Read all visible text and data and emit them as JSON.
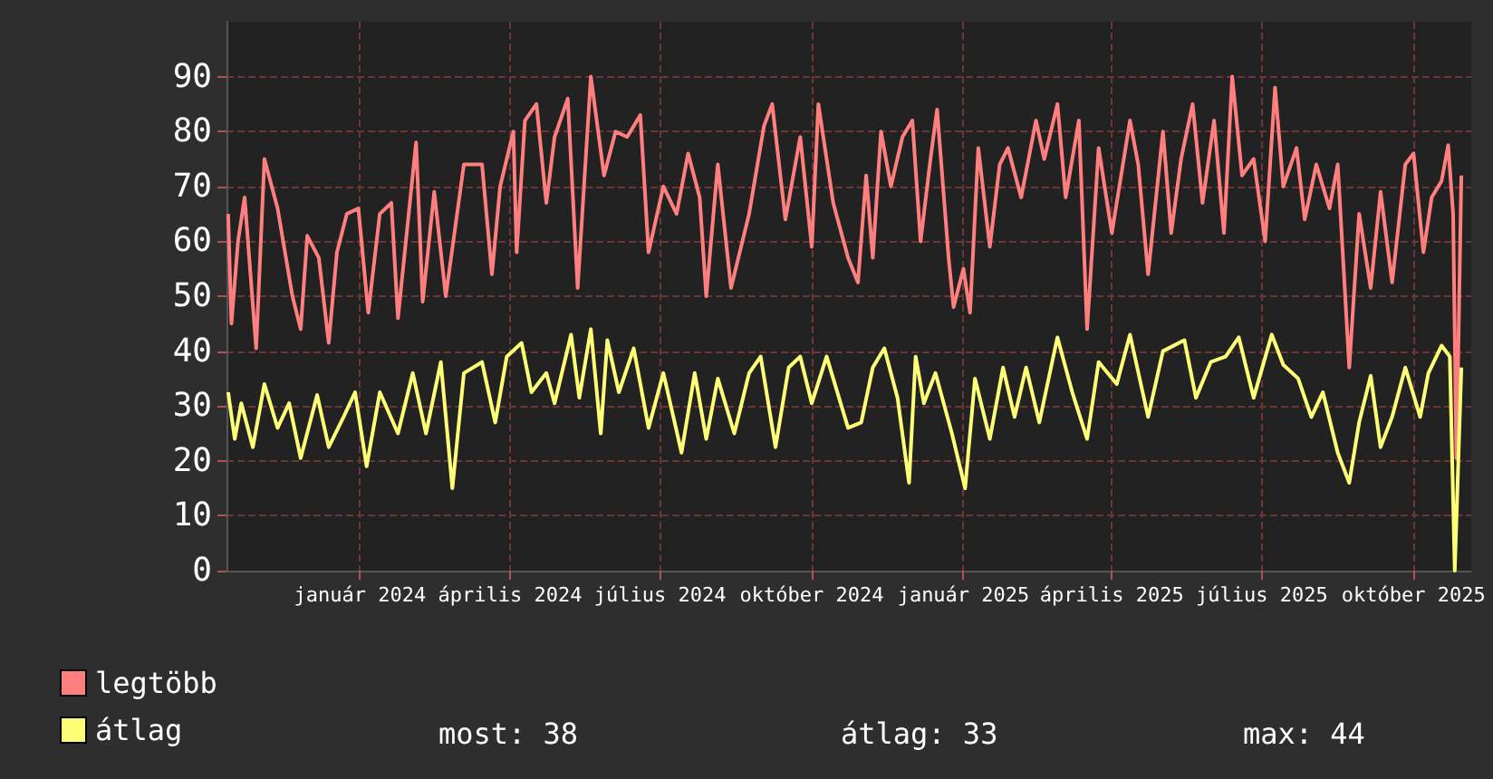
{
  "chart_data": {
    "type": "line",
    "xlim": [
      "2023-10-12",
      "2025-11-05"
    ],
    "xticks": [
      {
        "value": "2024-01-01",
        "label": "január 2024"
      },
      {
        "value": "2024-04-01",
        "label": "április 2024"
      },
      {
        "value": "2024-07-01",
        "label": "július 2024"
      },
      {
        "value": "2024-10-01",
        "label": "október 2024"
      },
      {
        "value": "2025-01-01",
        "label": "január 2025"
      },
      {
        "value": "2025-04-01",
        "label": "április 2025"
      },
      {
        "value": "2025-07-01",
        "label": "július 2025"
      },
      {
        "value": "2025-10-01",
        "label": "október 2025"
      }
    ],
    "ylim": [
      0,
      100
    ],
    "yticks": [
      0,
      10,
      20,
      30,
      40,
      50,
      60,
      70,
      80,
      90
    ],
    "grid": true,
    "legend": "bottom left",
    "marker": "none",
    "line_style": "solid",
    "annotations": [
      "most: 38",
      "átlag: 33",
      "max: 44"
    ],
    "series": [
      {
        "name": "legtöbb",
        "color": "#ff7f7f",
        "x": [
          "2023-10-13",
          "2023-10-15",
          "2023-10-19",
          "2023-10-23",
          "2023-10-30",
          "2023-11-04",
          "2023-11-12",
          "2023-11-21",
          "2023-11-26",
          "2023-11-30",
          "2023-12-07",
          "2023-12-13",
          "2023-12-18",
          "2023-12-24",
          "2023-12-31",
          "2024-01-06",
          "2024-01-13",
          "2024-01-20",
          "2024-01-24",
          "2024-02-04",
          "2024-02-08",
          "2024-02-15",
          "2024-02-22",
          "2024-03-04",
          "2024-03-15",
          "2024-03-21",
          "2024-03-26",
          "2024-04-03",
          "2024-04-05",
          "2024-04-10",
          "2024-04-17",
          "2024-04-23",
          "2024-04-28",
          "2024-05-06",
          "2024-05-12",
          "2024-05-20",
          "2024-05-28",
          "2024-06-04",
          "2024-06-11",
          "2024-06-19",
          "2024-06-24",
          "2024-07-03",
          "2024-07-11",
          "2024-07-18",
          "2024-07-25",
          "2024-07-29",
          "2024-08-05",
          "2024-08-13",
          "2024-08-24",
          "2024-09-02",
          "2024-09-07",
          "2024-09-15",
          "2024-09-24",
          "2024-10-01",
          "2024-10-05",
          "2024-10-14",
          "2024-10-23",
          "2024-10-29",
          "2024-11-03",
          "2024-11-07",
          "2024-11-12",
          "2024-11-18",
          "2024-11-25",
          "2024-12-01",
          "2024-12-06",
          "2024-12-12",
          "2024-12-16",
          "2024-12-23",
          "2024-12-26",
          "2025-01-01",
          "2025-01-05",
          "2025-01-10",
          "2025-01-17",
          "2025-01-23",
          "2025-01-28",
          "2025-02-05",
          "2025-02-14",
          "2025-02-19",
          "2025-02-27",
          "2025-03-04",
          "2025-03-12",
          "2025-03-17",
          "2025-03-24",
          "2025-04-01",
          "2025-04-12",
          "2025-04-17",
          "2025-04-23",
          "2025-05-02",
          "2025-05-07",
          "2025-05-13",
          "2025-05-20",
          "2025-05-26",
          "2025-06-02",
          "2025-06-08",
          "2025-06-13",
          "2025-06-19",
          "2025-06-26",
          "2025-07-03",
          "2025-07-09",
          "2025-07-14",
          "2025-07-22",
          "2025-07-27",
          "2025-08-03",
          "2025-08-11",
          "2025-08-16",
          "2025-08-23",
          "2025-08-29",
          "2025-09-05",
          "2025-09-11",
          "2025-09-18",
          "2025-09-26",
          "2025-10-01",
          "2025-10-07",
          "2025-10-12",
          "2025-10-18",
          "2025-10-22",
          "2025-10-25",
          "2025-10-27",
          "2025-10-30"
        ],
        "values": [
          65,
          45,
          60,
          68,
          40.5,
          75,
          66,
          50,
          44,
          61,
          57,
          41.5,
          58,
          65,
          66,
          47,
          65,
          67,
          46,
          78,
          49,
          69,
          50,
          74,
          74,
          54,
          70,
          80,
          58,
          82,
          85,
          67,
          79,
          86,
          51.5,
          90,
          72,
          80,
          79,
          83,
          58,
          70,
          65,
          76,
          68,
          50,
          74,
          51.5,
          65,
          81,
          85,
          64,
          79,
          59,
          85,
          67,
          57,
          52.5,
          72,
          57,
          80,
          70,
          79,
          82,
          60,
          75,
          84,
          57,
          48,
          55,
          47,
          77,
          59,
          74,
          77,
          68,
          82,
          75,
          85,
          68,
          82,
          44,
          77,
          61.5,
          82,
          74,
          54,
          80,
          61.5,
          75,
          85,
          67,
          82,
          61.5,
          90,
          72,
          75,
          60,
          88,
          70,
          77,
          64,
          74,
          66,
          74,
          37,
          65,
          51.5,
          69,
          52.5,
          74,
          76,
          58,
          68,
          71,
          77.5,
          65,
          20.5,
          72
        ]
      },
      {
        "name": "átlag",
        "color": "#ffff77",
        "x": [
          "2023-10-13",
          "2023-10-17",
          "2023-10-21",
          "2023-10-28",
          "2023-11-04",
          "2023-11-12",
          "2023-11-19",
          "2023-11-26",
          "2023-12-06",
          "2023-12-13",
          "2023-12-22",
          "2023-12-29",
          "2024-01-05",
          "2024-01-13",
          "2024-01-24",
          "2024-02-02",
          "2024-02-10",
          "2024-02-19",
          "2024-02-26",
          "2024-03-04",
          "2024-03-15",
          "2024-03-23",
          "2024-03-30",
          "2024-04-08",
          "2024-04-14",
          "2024-04-23",
          "2024-04-28",
          "2024-05-08",
          "2024-05-13",
          "2024-05-20",
          "2024-05-26",
          "2024-05-30",
          "2024-06-06",
          "2024-06-15",
          "2024-06-24",
          "2024-07-03",
          "2024-07-14",
          "2024-07-22",
          "2024-07-29",
          "2024-08-05",
          "2024-08-15",
          "2024-08-24",
          "2024-08-31",
          "2024-09-09",
          "2024-09-17",
          "2024-09-24",
          "2024-10-01",
          "2024-10-10",
          "2024-10-23",
          "2024-10-31",
          "2024-11-07",
          "2024-11-14",
          "2024-11-22",
          "2024-11-29",
          "2024-12-03",
          "2024-12-08",
          "2024-12-15",
          "2024-12-25",
          "2025-01-02",
          "2025-01-08",
          "2025-01-17",
          "2025-01-25",
          "2025-02-01",
          "2025-02-08",
          "2025-02-16",
          "2025-02-27",
          "2025-03-08",
          "2025-03-17",
          "2025-03-24",
          "2025-04-04",
          "2025-04-12",
          "2025-04-23",
          "2025-05-02",
          "2025-05-15",
          "2025-05-22",
          "2025-05-31",
          "2025-06-09",
          "2025-06-17",
          "2025-06-26",
          "2025-07-07",
          "2025-07-14",
          "2025-07-23",
          "2025-07-31",
          "2025-08-07",
          "2025-08-16",
          "2025-08-23",
          "2025-08-29",
          "2025-09-05",
          "2025-09-11",
          "2025-09-18",
          "2025-09-26",
          "2025-10-05",
          "2025-10-10",
          "2025-10-18",
          "2025-10-23",
          "2025-10-26",
          "2025-10-30"
        ],
        "values": [
          32.5,
          24,
          30.5,
          22.5,
          34,
          26,
          30.5,
          20.5,
          32,
          22.5,
          28,
          32.5,
          19,
          32.5,
          25,
          36,
          25,
          38,
          15,
          36,
          38,
          27,
          39,
          41.5,
          32.5,
          36,
          30.5,
          43,
          31.5,
          44,
          25,
          42,
          32.5,
          40.5,
          26,
          36,
          21.5,
          36,
          24,
          35,
          25,
          36,
          39,
          22.5,
          37,
          39,
          30.5,
          39,
          26,
          27,
          37,
          40.5,
          31.5,
          16,
          39,
          30.5,
          36,
          25,
          15,
          35,
          24,
          37,
          28,
          37,
          27,
          42.5,
          32.5,
          24,
          38,
          34,
          43,
          28,
          40,
          42,
          31.5,
          38,
          39,
          42.5,
          31.5,
          43,
          37.5,
          35,
          28,
          32.5,
          21.5,
          16,
          27,
          35.5,
          22.5,
          28,
          37,
          28,
          36,
          41,
          39,
          0,
          37
        ]
      }
    ]
  }
}
